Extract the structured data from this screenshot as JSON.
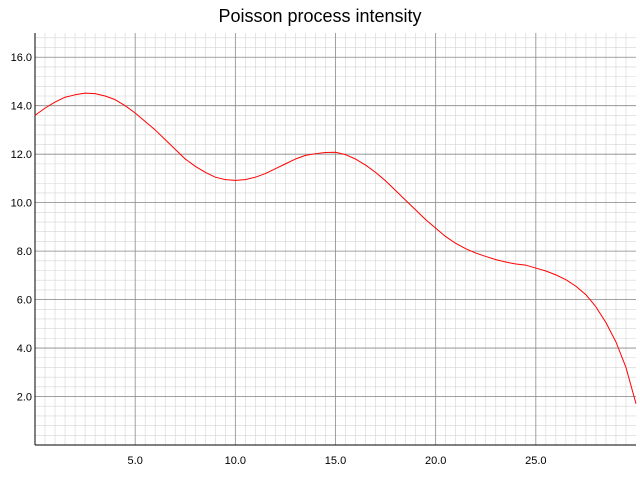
{
  "chart_data": {
    "type": "line",
    "title": "Poisson process intensity",
    "xlabel": "",
    "ylabel": "",
    "xlim": [
      0,
      30
    ],
    "ylim": [
      0,
      17
    ],
    "xticks": [
      5.0,
      10.0,
      15.0,
      20.0,
      25.0
    ],
    "xtick_labels": [
      "5.0",
      "10.0",
      "15.0",
      "20.0",
      "25.0"
    ],
    "yticks": [
      2.0,
      4.0,
      6.0,
      8.0,
      10.0,
      12.0,
      14.0,
      16.0
    ],
    "ytick_labels": [
      "2.0",
      "4.0",
      "6.0",
      "8.0",
      "10.0",
      "12.0",
      "14.0",
      "16.0"
    ],
    "grid": true,
    "series": [
      {
        "color": "#ff0000",
        "x": [
          0,
          0.5,
          1,
          1.5,
          2,
          2.5,
          3,
          3.5,
          4,
          4.5,
          5,
          5.5,
          6,
          6.5,
          7,
          7.5,
          8,
          8.5,
          9,
          9.5,
          10,
          10.5,
          11,
          11.5,
          12,
          12.5,
          13,
          13.5,
          14,
          14.5,
          15,
          15.5,
          16,
          16.5,
          17,
          17.5,
          18,
          18.5,
          19,
          19.5,
          20,
          20.5,
          21,
          21.5,
          22,
          22.5,
          23,
          23.5,
          24,
          24.5,
          25,
          25.5,
          26,
          26.5,
          27,
          27.5,
          28,
          28.5,
          29,
          29.5,
          30
        ],
        "y": [
          13.6,
          13.9,
          14.15,
          14.35,
          14.45,
          14.52,
          14.5,
          14.4,
          14.25,
          14.0,
          13.7,
          13.35,
          13.0,
          12.6,
          12.2,
          11.8,
          11.5,
          11.25,
          11.05,
          10.95,
          10.92,
          10.95,
          11.05,
          11.2,
          11.4,
          11.6,
          11.8,
          11.95,
          12.02,
          12.07,
          12.08,
          11.98,
          11.8,
          11.55,
          11.25,
          10.9,
          10.5,
          10.1,
          9.7,
          9.3,
          8.95,
          8.6,
          8.32,
          8.1,
          7.92,
          7.78,
          7.65,
          7.55,
          7.47,
          7.42,
          7.3,
          7.18,
          7.02,
          6.82,
          6.55,
          6.2,
          5.7,
          5.05,
          4.25,
          3.2,
          1.7
        ]
      }
    ]
  }
}
